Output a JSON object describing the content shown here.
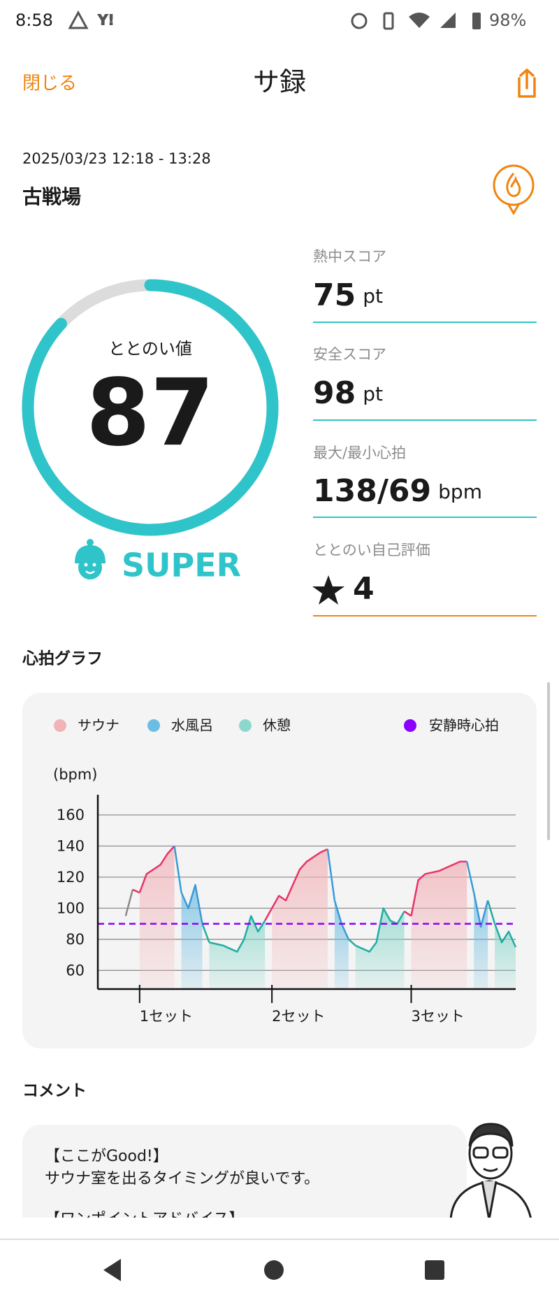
{
  "status_bar": {
    "time": "8:58",
    "battery": "98%"
  },
  "header": {
    "close": "閉じる",
    "title": "サ録"
  },
  "session": {
    "datetime": "2025/03/23 12:18 - 13:28",
    "place": "古戦場"
  },
  "score": {
    "label": "ととのい値",
    "value": 87,
    "range": [
      0,
      100
    ],
    "rank": "SUPER"
  },
  "stats": [
    {
      "label": "熱中スコア",
      "value": 75,
      "unit": "pt"
    },
    {
      "label": "安全スコア",
      "value": 98,
      "unit": "pt"
    },
    {
      "label": "最大/最小心拍",
      "value": "138/69",
      "unit": "bpm"
    },
    {
      "label": "ととのい自己評価",
      "value": 4
    }
  ],
  "heart_graph_title": "心拍グラフ",
  "chart_data": {
    "type": "line",
    "y_label": "(bpm)",
    "x": [
      0,
      1,
      2,
      3,
      4,
      5,
      6,
      7,
      8,
      9,
      10,
      11,
      12,
      13,
      14,
      15,
      16,
      17,
      18,
      19,
      20,
      21,
      22,
      23,
      24,
      25,
      26,
      27,
      28,
      29,
      30,
      31,
      32,
      33,
      34,
      35,
      36,
      37,
      38,
      39,
      40,
      41,
      42,
      43,
      44,
      45,
      46,
      47,
      48,
      49,
      50,
      51,
      52,
      53,
      54,
      55,
      56
    ],
    "xlim": [
      -4,
      56
    ],
    "xticks": [
      {
        "value": 2,
        "label": "1セット"
      },
      {
        "value": 21,
        "label": "2セット"
      },
      {
        "value": 41,
        "label": "3セット"
      }
    ],
    "ylim": [
      48,
      173
    ],
    "yticks": [
      60,
      80,
      100,
      120,
      140,
      160
    ],
    "grid": true,
    "series": [
      {
        "color": "#8a8a8a",
        "values": [
          95,
          112,
          null,
          null,
          null,
          null,
          null,
          null,
          null,
          null,
          null,
          null,
          null,
          null,
          null,
          null,
          null,
          null,
          null,
          null,
          null,
          null,
          null,
          null,
          null,
          null,
          null,
          null,
          null,
          null,
          null,
          null,
          null,
          null,
          null,
          null,
          null,
          null,
          null,
          null,
          null,
          null,
          null,
          null,
          null,
          null,
          null,
          null,
          null,
          null,
          null,
          null,
          null,
          null,
          null,
          null,
          null
        ]
      },
      {
        "name": "サウナ",
        "color": "#e8336b",
        "fill": "#f2b3b8",
        "values": [
          null,
          null,
          110,
          122,
          125,
          128,
          135,
          140,
          null,
          null,
          null,
          null,
          null,
          null,
          null,
          null,
          null,
          null,
          null,
          null,
          null,
          100,
          108,
          105,
          115,
          125,
          130,
          133,
          136,
          138,
          null,
          null,
          null,
          null,
          null,
          null,
          null,
          null,
          null,
          null,
          null,
          95,
          118,
          122,
          123,
          124,
          126,
          128,
          130,
          130,
          null,
          null,
          null,
          null,
          null,
          null,
          null
        ]
      },
      {
        "name": "水風呂",
        "color": "#3a9ad8",
        "fill": "#6dbde2",
        "values": [
          null,
          null,
          null,
          null,
          null,
          null,
          null,
          null,
          110,
          100,
          115,
          90,
          null,
          null,
          null,
          null,
          null,
          null,
          null,
          null,
          null,
          null,
          null,
          null,
          null,
          null,
          null,
          null,
          null,
          null,
          105,
          90,
          80,
          null,
          null,
          null,
          null,
          null,
          null,
          null,
          null,
          null,
          null,
          null,
          null,
          null,
          null,
          null,
          null,
          null,
          110,
          88,
          105,
          null,
          null,
          null,
          null
        ]
      },
      {
        "name": "休憩",
        "color": "#22ada2",
        "fill": "#8dd8cc",
        "values": [
          null,
          null,
          null,
          null,
          null,
          null,
          null,
          null,
          null,
          null,
          null,
          null,
          78,
          77,
          76,
          74,
          72,
          80,
          95,
          85,
          92,
          null,
          null,
          null,
          null,
          null,
          null,
          null,
          null,
          null,
          null,
          null,
          null,
          76,
          74,
          72,
          78,
          100,
          92,
          90,
          98,
          null,
          null,
          null,
          null,
          null,
          null,
          null,
          null,
          null,
          null,
          null,
          null,
          90,
          78,
          85,
          75
        ]
      }
    ],
    "reference": {
      "name": "安静時心拍",
      "value": 90,
      "color": "#8b00ff"
    }
  },
  "comment": {
    "title": "コメント",
    "lines": [
      "【ここがGood!】",
      "サウナ室を出るタイミングが良いです。",
      "【ワンポイントアドバイス】"
    ]
  }
}
